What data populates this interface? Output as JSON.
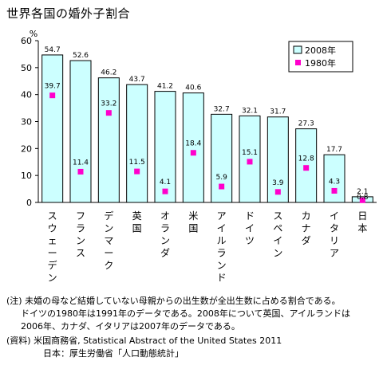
{
  "chart_data": {
    "type": "bar",
    "title": "世界各国の婚外子割合",
    "ylabel": "%",
    "ylim": [
      0,
      60
    ],
    "yticks": [
      0,
      10,
      20,
      30,
      40,
      50,
      60
    ],
    "grid": false,
    "legend_position": "top-right",
    "categories": [
      "スウェーデン",
      "フランス",
      "デンマーク",
      "英国",
      "オランダ",
      "米国",
      "アイルランド",
      "ドイツ",
      "スペイン",
      "カナダ",
      "イタリア",
      "日本"
    ],
    "series": [
      {
        "name": "2008年",
        "mark": "bar",
        "color": "#ccffff",
        "values": [
          54.7,
          52.6,
          46.2,
          43.7,
          41.2,
          40.6,
          32.7,
          32.1,
          31.7,
          27.3,
          17.7,
          2.1
        ],
        "labels": [
          "54.7",
          "52.6",
          "46.2",
          "43.7",
          "41.2",
          "40.6",
          "32.7",
          "32.1",
          "31.7",
          "27.3",
          "17.7",
          "2.1"
        ]
      },
      {
        "name": "1980年",
        "mark": "square",
        "color": "#ff00cc",
        "values": [
          39.7,
          11.4,
          33.2,
          11.5,
          4.1,
          18.4,
          5.9,
          15.1,
          3.9,
          12.8,
          4.3,
          0.8
        ],
        "labels": [
          "39.7",
          "11.4",
          "33.2",
          "11.5",
          "4.1",
          "18.4",
          "5.9",
          "15.1",
          "3.9",
          "12.8",
          "4.3",
          "0.8"
        ]
      }
    ]
  },
  "notes": [
    "(注) 未婚の母など結婚していない母親からの出生数が全出生数に占める割合である。",
    "ドイツの1980年は1991年のデータである。2008年について英国、アイルランドは",
    "2006年、カナダ、イタリアは2007年のデータである。",
    "(資料) 米国商務省, Statistical Abstract of the United States 2011",
    "日本：厚生労働省「人口動態統計」"
  ]
}
